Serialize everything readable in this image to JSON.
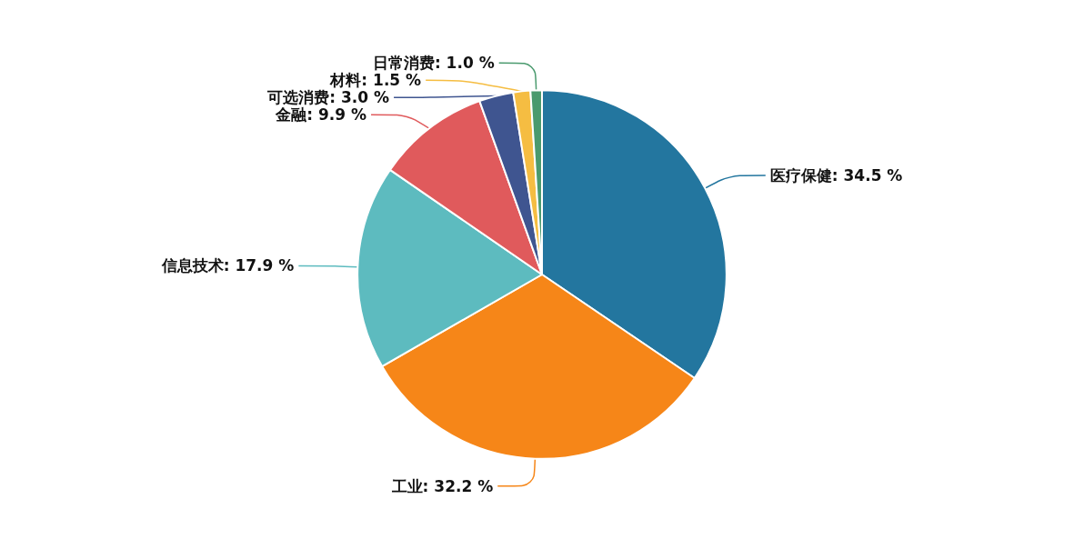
{
  "chart_data": {
    "type": "pie",
    "categories": [
      "医疗保健",
      "工业",
      "信息技术",
      "金融",
      "可选消费",
      "材料",
      "日常消费"
    ],
    "values": [
      34.5,
      32.2,
      17.9,
      9.9,
      3.0,
      1.5,
      1.0
    ],
    "value_labels": [
      "34.5 %",
      "32.2 %",
      "17.9 %",
      "9.9 %",
      "3.0 %",
      "1.5 %",
      "1.0 %"
    ],
    "colors": [
      "#23769f",
      "#f68618",
      "#5dbbbf",
      "#e05a5c",
      "#3f5590",
      "#f5bd42",
      "#4a9a6e"
    ],
    "legend": false
  }
}
